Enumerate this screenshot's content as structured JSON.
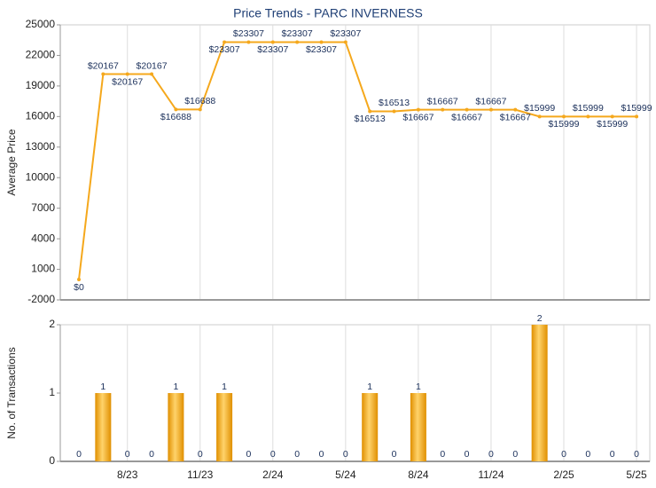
{
  "chart_data": [
    {
      "type": "line",
      "title": "Price Trends - PARC INVERNESS",
      "y_label": "Average Price",
      "categories": [
        null,
        null,
        "8/23",
        null,
        null,
        "11/23",
        null,
        null,
        "2/24",
        null,
        null,
        "5/24",
        null,
        null,
        "8/24",
        null,
        null,
        "11/24",
        null,
        null,
        "2/25",
        null,
        null,
        "5/25"
      ],
      "values": [
        0,
        20167,
        20167,
        20167,
        16688,
        16688,
        23307,
        23307,
        23307,
        23307,
        23307,
        23307,
        16513,
        16513,
        16667,
        16667,
        16667,
        16667,
        16667,
        15999,
        15999,
        15999,
        15999,
        15999
      ],
      "value_labels": [
        "$0",
        "$20167",
        "$20167",
        "$20167",
        "$16688",
        "$16688",
        "$23307",
        "$23307",
        "$23307",
        "$23307",
        "$23307",
        "$23307",
        "$16513",
        "$16513",
        "$16667",
        "$16667",
        "$16667",
        "$16667",
        "$16667",
        "$15999",
        "$15999",
        "$15999",
        "$15999",
        "$15999"
      ],
      "color": "#f5a81c",
      "ylim": [
        -2000,
        25000
      ],
      "yticks": [
        -2000,
        1000,
        4000,
        7000,
        10000,
        13000,
        16000,
        19000,
        22000,
        25000
      ],
      "grid": true
    },
    {
      "type": "bar",
      "y_label": "No. of Transactions",
      "categories": [
        null,
        null,
        "8/23",
        null,
        null,
        "11/23",
        null,
        null,
        "2/24",
        null,
        null,
        "5/24",
        null,
        null,
        "8/24",
        null,
        null,
        "11/24",
        null,
        null,
        "2/25",
        null,
        null,
        "5/25"
      ],
      "values": [
        0,
        1,
        0,
        0,
        1,
        0,
        1,
        0,
        0,
        0,
        0,
        0,
        1,
        0,
        1,
        0,
        0,
        0,
        0,
        2,
        0,
        0,
        0,
        0
      ],
      "color": "#f5a81c",
      "ylim": [
        0,
        2
      ],
      "yticks": [
        0,
        1,
        2
      ],
      "grid": true
    }
  ]
}
